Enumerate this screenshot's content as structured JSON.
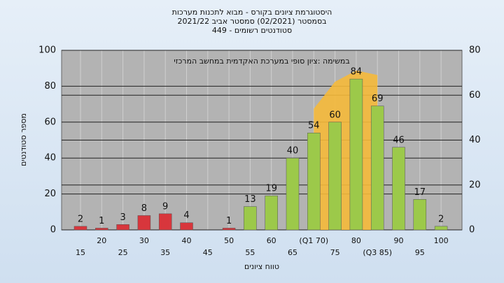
{
  "chart_data": {
    "type": "bar",
    "title": [
      "היסטוגרמת ציונים בקורס - מבוא לתכנות מערכות",
      "בסמסטר (02/2021) סמסטר אביב 2021/22",
      "449 - סטודנטים רשומים"
    ],
    "annotation": "במשימה :ציון סופי במערכת האקדמית במחשב המרכזי",
    "xlabel": "טווח ציונים",
    "ylabel": "מספר סטודנטים",
    "categories": [
      "15",
      "20",
      "25",
      "30",
      "35",
      "40",
      "45",
      "50",
      "55",
      "60",
      "65",
      "(Q1 70)",
      "75",
      "80",
      "(Q3 85)",
      "90",
      "95",
      "100"
    ],
    "values": [
      2,
      1,
      3,
      8,
      9,
      4,
      null,
      1,
      13,
      19,
      40,
      54,
      60,
      84,
      69,
      46,
      17,
      2
    ],
    "colors": [
      "#d8363c",
      "#d8363c",
      "#d8363c",
      "#d8363c",
      "#d8363c",
      "#d8363c",
      "#d8363c",
      "#d8363c",
      "#9cc94a",
      "#9cc94a",
      "#9cc94a",
      "#9cc94a",
      "#9cc94a",
      "#9cc94a",
      "#9cc94a",
      "#9cc94a",
      "#9cc94a",
      "#9cc94a"
    ],
    "area": {
      "color": "#f5b93a",
      "axis": "y2",
      "values": [
        null,
        null,
        null,
        null,
        null,
        null,
        null,
        null,
        null,
        null,
        null,
        54,
        66,
        71,
        69,
        null,
        null,
        null
      ]
    },
    "ylim": [
      0,
      100
    ],
    "yticks": [
      0,
      20,
      40,
      60,
      80,
      100
    ],
    "y2lim": [
      0,
      80
    ],
    "y2ticks": [
      0,
      20,
      40,
      60,
      80
    ],
    "grid": true
  }
}
